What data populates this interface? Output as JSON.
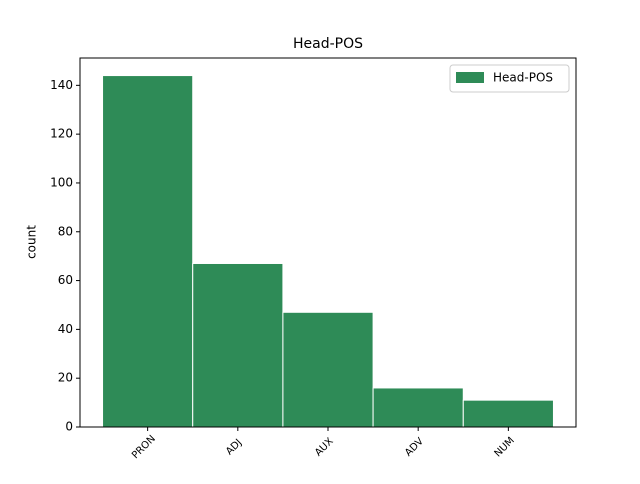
{
  "chart_data": {
    "type": "bar",
    "title": "Head-POS",
    "y_label": "count",
    "categories": [
      "PRON",
      "ADJ",
      "AUX",
      "ADV",
      "NUM"
    ],
    "series": [
      {
        "name": "Head-POS",
        "color": "#2e8b57",
        "values": [
          144,
          67,
          47,
          16,
          11
        ]
      }
    ],
    "ylim": [
      0,
      151.2
    ],
    "yticks": [
      0,
      20,
      40,
      60,
      80,
      100,
      120,
      140
    ],
    "legend": "upper right"
  }
}
